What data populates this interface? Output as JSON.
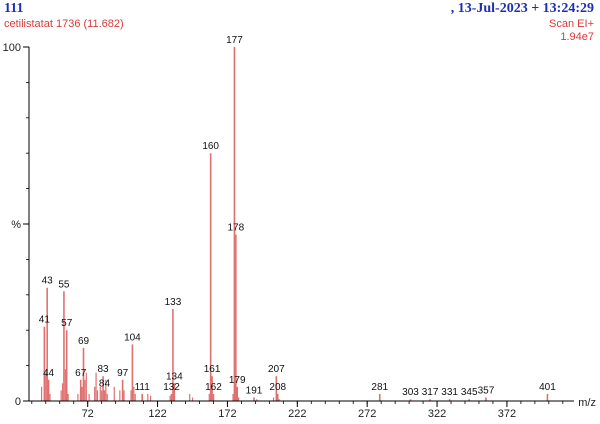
{
  "header": {
    "sample_id": "111",
    "datetime": ",  13-Jul-2023 + 13:24:29",
    "sample_name": "cetilistatat 1736 (11.682)",
    "scan_type": "Scan EI+",
    "max_intensity": "1.94e7"
  },
  "colors": {
    "peaks": "#e07070",
    "axis": "#000000",
    "header": "#1c2fb8",
    "subheader": "#d83a3a"
  },
  "chart_data": {
    "type": "bar",
    "xlabel": "m/z",
    "ylabel": "%",
    "xlim": [
      30,
      420
    ],
    "ylim": [
      0,
      100
    ],
    "x_ticks": [
      72,
      122,
      172,
      222,
      272,
      322,
      372
    ],
    "y_ticks": [
      {
        "value": 0,
        "label": "0"
      },
      {
        "value": 50,
        "label": "%"
      },
      {
        "value": 100,
        "label": "100"
      }
    ],
    "labeled_peaks": [
      {
        "mz": 41,
        "intensity": 21,
        "label": "41"
      },
      {
        "mz": 43,
        "intensity": 32,
        "label": "43"
      },
      {
        "mz": 44,
        "intensity": 6,
        "label": "44"
      },
      {
        "mz": 55,
        "intensity": 31,
        "label": "55"
      },
      {
        "mz": 57,
        "intensity": 20,
        "label": "57"
      },
      {
        "mz": 67,
        "intensity": 6,
        "label": "67"
      },
      {
        "mz": 69,
        "intensity": 15,
        "label": "69"
      },
      {
        "mz": 83,
        "intensity": 7,
        "label": "83"
      },
      {
        "mz": 84,
        "intensity": 3,
        "label": "84"
      },
      {
        "mz": 97,
        "intensity": 6,
        "label": "97"
      },
      {
        "mz": 104,
        "intensity": 16,
        "label": "104"
      },
      {
        "mz": 111,
        "intensity": 2,
        "label": "111"
      },
      {
        "mz": 132,
        "intensity": 2,
        "label": "132"
      },
      {
        "mz": 133,
        "intensity": 26,
        "label": "133"
      },
      {
        "mz": 134,
        "intensity": 5,
        "label": "134"
      },
      {
        "mz": 160,
        "intensity": 70,
        "label": "160"
      },
      {
        "mz": 161,
        "intensity": 7,
        "label": "161"
      },
      {
        "mz": 162,
        "intensity": 2,
        "label": "162"
      },
      {
        "mz": 177,
        "intensity": 100,
        "label": "177"
      },
      {
        "mz": 178,
        "intensity": 47,
        "label": "178"
      },
      {
        "mz": 179,
        "intensity": 4,
        "label": "179"
      },
      {
        "mz": 191,
        "intensity": 1,
        "label": "191"
      },
      {
        "mz": 207,
        "intensity": 7,
        "label": "207"
      },
      {
        "mz": 208,
        "intensity": 2,
        "label": "208"
      },
      {
        "mz": 281,
        "intensity": 2,
        "label": "281"
      },
      {
        "mz": 303,
        "intensity": 0.5,
        "label": "303"
      },
      {
        "mz": 317,
        "intensity": 0.5,
        "label": "317"
      },
      {
        "mz": 331,
        "intensity": 0.5,
        "label": "331"
      },
      {
        "mz": 345,
        "intensity": 0.5,
        "label": "345"
      },
      {
        "mz": 357,
        "intensity": 1,
        "label": "357"
      },
      {
        "mz": 401,
        "intensity": 2,
        "label": "401"
      }
    ],
    "minor_peaks": [
      {
        "mz": 39,
        "intensity": 4
      },
      {
        "mz": 42,
        "intensity": 8
      },
      {
        "mz": 45,
        "intensity": 2
      },
      {
        "mz": 53,
        "intensity": 3
      },
      {
        "mz": 54,
        "intensity": 5
      },
      {
        "mz": 56,
        "intensity": 9
      },
      {
        "mz": 58,
        "intensity": 2
      },
      {
        "mz": 65,
        "intensity": 2
      },
      {
        "mz": 68,
        "intensity": 4
      },
      {
        "mz": 70,
        "intensity": 6
      },
      {
        "mz": 71,
        "intensity": 8
      },
      {
        "mz": 73,
        "intensity": 2
      },
      {
        "mz": 77,
        "intensity": 4
      },
      {
        "mz": 78,
        "intensity": 8
      },
      {
        "mz": 79,
        "intensity": 3
      },
      {
        "mz": 81,
        "intensity": 4
      },
      {
        "mz": 82,
        "intensity": 3
      },
      {
        "mz": 85,
        "intensity": 6
      },
      {
        "mz": 86,
        "intensity": 2
      },
      {
        "mz": 91,
        "intensity": 4
      },
      {
        "mz": 95,
        "intensity": 3
      },
      {
        "mz": 98,
        "intensity": 3
      },
      {
        "mz": 103,
        "intensity": 3
      },
      {
        "mz": 105,
        "intensity": 4
      },
      {
        "mz": 106,
        "intensity": 2
      },
      {
        "mz": 115,
        "intensity": 2
      },
      {
        "mz": 117,
        "intensity": 1.5
      },
      {
        "mz": 131,
        "intensity": 1.5
      },
      {
        "mz": 145,
        "intensity": 2
      },
      {
        "mz": 147,
        "intensity": 1
      },
      {
        "mz": 159,
        "intensity": 2
      },
      {
        "mz": 176,
        "intensity": 2
      },
      {
        "mz": 180,
        "intensity": 1
      },
      {
        "mz": 193,
        "intensity": 0.5
      },
      {
        "mz": 205,
        "intensity": 1
      },
      {
        "mz": 209,
        "intensity": 0.5
      }
    ]
  }
}
